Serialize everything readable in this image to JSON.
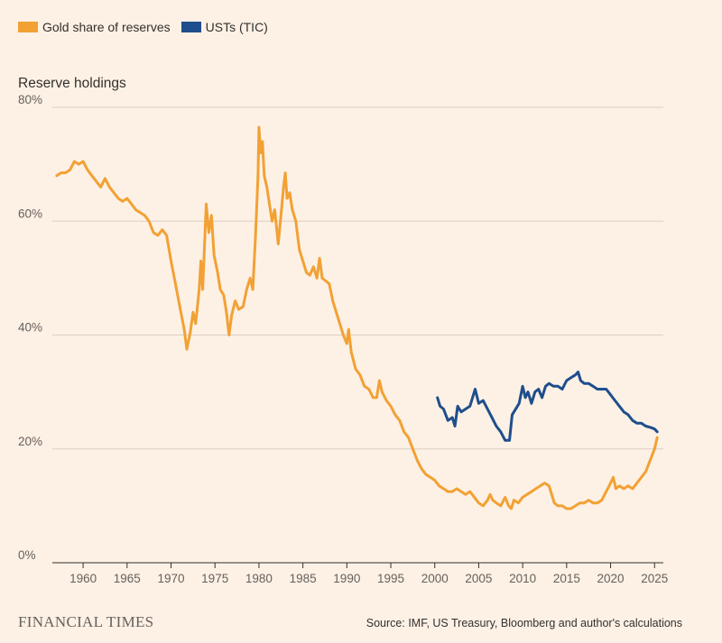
{
  "legend": {
    "items": [
      {
        "label": "Gold share of reserves",
        "color": "#f2a134"
      },
      {
        "label": "USTs (TIC)",
        "color": "#1f4e8c"
      }
    ]
  },
  "subtitle": "Reserve holdings",
  "source": "Source: IMF, US Treasury, Bloomberg and author's calculations",
  "logo": "FINANCIAL TIMES",
  "chart_data": {
    "type": "line",
    "title": "",
    "ylabel": "Reserve holdings",
    "xlabel": "",
    "xlim": [
      1956.5,
      2026
    ],
    "ylim": [
      0,
      80
    ],
    "y_ticks": [
      0,
      20,
      40,
      60,
      80
    ],
    "y_tick_labels": [
      "0%",
      "20%",
      "40%",
      "60%",
      "80%"
    ],
    "x_ticks": [
      1960,
      1965,
      1970,
      1975,
      1980,
      1985,
      1990,
      1995,
      2000,
      2005,
      2010,
      2015,
      2020,
      2025
    ],
    "x_tick_labels": [
      "1960",
      "1965",
      "1970",
      "1975",
      "1980",
      "1985",
      "1990",
      "1995",
      "2000",
      "2005",
      "2010",
      "2015",
      "2020",
      "2025"
    ],
    "grid": true,
    "legend_position": "top-left",
    "series": [
      {
        "name": "Gold share of reserves",
        "color": "#f2a134",
        "points": [
          [
            1957,
            68
          ],
          [
            1957.5,
            68.5
          ],
          [
            1958,
            68.5
          ],
          [
            1958.5,
            69
          ],
          [
            1959,
            70.5
          ],
          [
            1959.5,
            70
          ],
          [
            1960,
            70.5
          ],
          [
            1960.5,
            69
          ],
          [
            1961,
            68
          ],
          [
            1961.5,
            67
          ],
          [
            1962,
            66
          ],
          [
            1962.5,
            67.5
          ],
          [
            1963,
            66
          ],
          [
            1963.5,
            65
          ],
          [
            1964,
            64
          ],
          [
            1964.5,
            63.5
          ],
          [
            1965,
            64
          ],
          [
            1965.5,
            63
          ],
          [
            1966,
            62
          ],
          [
            1966.5,
            61.5
          ],
          [
            1967,
            61
          ],
          [
            1967.5,
            60
          ],
          [
            1968,
            58
          ],
          [
            1968.5,
            57.5
          ],
          [
            1969,
            58.5
          ],
          [
            1969.5,
            57.5
          ],
          [
            1970,
            53
          ],
          [
            1970.5,
            49
          ],
          [
            1971,
            45
          ],
          [
            1971.5,
            41
          ],
          [
            1971.8,
            37.5
          ],
          [
            1972.2,
            40.5
          ],
          [
            1972.5,
            44
          ],
          [
            1972.8,
            42
          ],
          [
            1973.2,
            48
          ],
          [
            1973.4,
            53
          ],
          [
            1973.6,
            48
          ],
          [
            1974,
            63
          ],
          [
            1974.3,
            58
          ],
          [
            1974.6,
            61
          ],
          [
            1974.9,
            54
          ],
          [
            1975.3,
            51
          ],
          [
            1975.6,
            48
          ],
          [
            1976,
            47
          ],
          [
            1976.3,
            44
          ],
          [
            1976.6,
            40
          ],
          [
            1976.9,
            43.5
          ],
          [
            1977.3,
            46
          ],
          [
            1977.7,
            44.5
          ],
          [
            1978.2,
            45
          ],
          [
            1978.6,
            48
          ],
          [
            1979,
            50
          ],
          [
            1979.3,
            48
          ],
          [
            1979.6,
            57
          ],
          [
            1979.9,
            68
          ],
          [
            1980,
            76.5
          ],
          [
            1980.2,
            72
          ],
          [
            1980.4,
            74
          ],
          [
            1980.6,
            68
          ],
          [
            1980.9,
            66
          ],
          [
            1981.2,
            63
          ],
          [
            1981.5,
            60
          ],
          [
            1981.8,
            62
          ],
          [
            1982.2,
            56
          ],
          [
            1982.5,
            61
          ],
          [
            1982.8,
            66
          ],
          [
            1983,
            68.5
          ],
          [
            1983.2,
            64
          ],
          [
            1983.5,
            65
          ],
          [
            1983.8,
            62
          ],
          [
            1984.2,
            60
          ],
          [
            1984.6,
            55
          ],
          [
            1985,
            53
          ],
          [
            1985.4,
            51
          ],
          [
            1985.8,
            50.5
          ],
          [
            1986.2,
            52
          ],
          [
            1986.6,
            50
          ],
          [
            1986.9,
            53.5
          ],
          [
            1987.2,
            50
          ],
          [
            1987.6,
            49.5
          ],
          [
            1988,
            49
          ],
          [
            1988.4,
            46
          ],
          [
            1988.8,
            44
          ],
          [
            1989.2,
            42
          ],
          [
            1989.6,
            40
          ],
          [
            1990,
            38.5
          ],
          [
            1990.2,
            41
          ],
          [
            1990.5,
            37
          ],
          [
            1991,
            34
          ],
          [
            1991.5,
            33
          ],
          [
            1992,
            31
          ],
          [
            1992.5,
            30.5
          ],
          [
            1993,
            29
          ],
          [
            1993.4,
            29
          ],
          [
            1993.7,
            32
          ],
          [
            1994,
            30
          ],
          [
            1994.5,
            28.5
          ],
          [
            1995,
            27.5
          ],
          [
            1995.5,
            26
          ],
          [
            1996,
            25
          ],
          [
            1996.5,
            23
          ],
          [
            1997,
            22
          ],
          [
            1997.5,
            20
          ],
          [
            1998,
            18
          ],
          [
            1998.5,
            16.5
          ],
          [
            1999,
            15.5
          ],
          [
            1999.5,
            15
          ],
          [
            2000,
            14.5
          ],
          [
            2000.5,
            13.5
          ],
          [
            2001,
            13
          ],
          [
            2001.5,
            12.5
          ],
          [
            2002,
            12.5
          ],
          [
            2002.5,
            13
          ],
          [
            2003,
            12.5
          ],
          [
            2003.5,
            12
          ],
          [
            2004,
            12.5
          ],
          [
            2004.5,
            11.5
          ],
          [
            2005,
            10.5
          ],
          [
            2005.5,
            10
          ],
          [
            2006,
            11
          ],
          [
            2006.3,
            12
          ],
          [
            2006.6,
            11
          ],
          [
            2007,
            10.5
          ],
          [
            2007.5,
            10
          ],
          [
            2008,
            11.5
          ],
          [
            2008.4,
            10
          ],
          [
            2008.7,
            9.5
          ],
          [
            2009,
            11
          ],
          [
            2009.5,
            10.5
          ],
          [
            2010,
            11.5
          ],
          [
            2010.5,
            12
          ],
          [
            2011,
            12.5
          ],
          [
            2011.5,
            13
          ],
          [
            2012,
            13.5
          ],
          [
            2012.5,
            14
          ],
          [
            2013,
            13.5
          ],
          [
            2013.3,
            12
          ],
          [
            2013.6,
            10.5
          ],
          [
            2014,
            10
          ],
          [
            2014.5,
            10
          ],
          [
            2015,
            9.5
          ],
          [
            2015.5,
            9.5
          ],
          [
            2016,
            10
          ],
          [
            2016.5,
            10.5
          ],
          [
            2017,
            10.5
          ],
          [
            2017.5,
            11
          ],
          [
            2018,
            10.5
          ],
          [
            2018.5,
            10.5
          ],
          [
            2019,
            11
          ],
          [
            2019.5,
            12.5
          ],
          [
            2020,
            14
          ],
          [
            2020.3,
            15
          ],
          [
            2020.6,
            13
          ],
          [
            2021,
            13.5
          ],
          [
            2021.5,
            13
          ],
          [
            2022,
            13.5
          ],
          [
            2022.5,
            13
          ],
          [
            2023,
            14
          ],
          [
            2023.5,
            15
          ],
          [
            2024,
            16
          ],
          [
            2024.5,
            18
          ],
          [
            2025,
            20
          ],
          [
            2025.3,
            22
          ]
        ]
      },
      {
        "name": "USTs (TIC)",
        "color": "#1f4e8c",
        "points": [
          [
            2000.3,
            29
          ],
          [
            2000.6,
            27.5
          ],
          [
            2001,
            27
          ],
          [
            2001.5,
            25
          ],
          [
            2002,
            25.5
          ],
          [
            2002.3,
            24
          ],
          [
            2002.6,
            27.5
          ],
          [
            2003,
            26.5
          ],
          [
            2003.5,
            27
          ],
          [
            2004,
            27.5
          ],
          [
            2004.3,
            29
          ],
          [
            2004.6,
            30.5
          ],
          [
            2005,
            28
          ],
          [
            2005.5,
            28.5
          ],
          [
            2006,
            27
          ],
          [
            2006.5,
            25.5
          ],
          [
            2007,
            24
          ],
          [
            2007.5,
            23
          ],
          [
            2008,
            21.5
          ],
          [
            2008.5,
            21.5
          ],
          [
            2008.8,
            26
          ],
          [
            2009.2,
            27
          ],
          [
            2009.6,
            28
          ],
          [
            2010,
            31
          ],
          [
            2010.3,
            29
          ],
          [
            2010.6,
            30
          ],
          [
            2011,
            28
          ],
          [
            2011.4,
            30
          ],
          [
            2011.8,
            30.5
          ],
          [
            2012.2,
            29
          ],
          [
            2012.6,
            31
          ],
          [
            2013,
            31.5
          ],
          [
            2013.5,
            31
          ],
          [
            2014,
            31
          ],
          [
            2014.5,
            30.5
          ],
          [
            2015,
            32
          ],
          [
            2015.5,
            32.5
          ],
          [
            2016,
            33
          ],
          [
            2016.3,
            33.5
          ],
          [
            2016.6,
            32
          ],
          [
            2017,
            31.5
          ],
          [
            2017.5,
            31.5
          ],
          [
            2018,
            31
          ],
          [
            2018.5,
            30.5
          ],
          [
            2019,
            30.5
          ],
          [
            2019.5,
            30.5
          ],
          [
            2020,
            29.5
          ],
          [
            2020.5,
            28.5
          ],
          [
            2021,
            27.5
          ],
          [
            2021.5,
            26.5
          ],
          [
            2022,
            26
          ],
          [
            2022.5,
            25
          ],
          [
            2023,
            24.5
          ],
          [
            2023.5,
            24.5
          ],
          [
            2024,
            24
          ],
          [
            2024.5,
            23.8
          ],
          [
            2025,
            23.5
          ],
          [
            2025.3,
            23
          ]
        ]
      }
    ]
  }
}
